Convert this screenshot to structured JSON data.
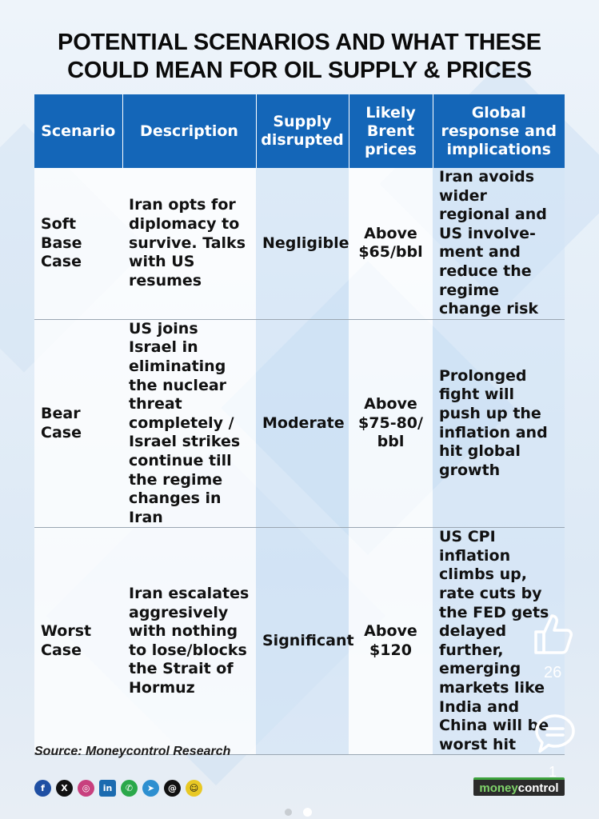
{
  "title": {
    "line1": "POTENTIAL SCENARIOS AND WHAT THESE",
    "line2": "COULD MEAN FOR OIL SUPPLY & PRICES"
  },
  "table": {
    "headers": [
      "Scenario",
      "Description",
      "Supply disrupted",
      "Likely Brent prices",
      "Global response and implications"
    ],
    "rows": [
      {
        "scenario": "Soft Base Case",
        "description": "Iran opts for diplomacy to survive. Talks with US resumes",
        "supply": "Negligible",
        "price": "Above $65/bbl",
        "response": "Iran avoids wider regional and US involve-ment and reduce the regime change risk"
      },
      {
        "scenario": "Bear Case",
        "description": "US joins Israel in eliminating the nuclear threat completely / Israel strikes continue till the regime changes in Iran",
        "supply": "Moderate",
        "price": "Above $75-80/ bbl",
        "response": "Prolonged fight will push up the inflation and hit global growth"
      },
      {
        "scenario": "Worst Case",
        "description": "Iran escalates aggresively with nothing to lose/blocks the Strait of Hormuz",
        "supply": "Significant",
        "price": "Above $120",
        "response": "US CPI inflation climbs up, rate cuts by the FED gets delayed further, emerging markets like India and China will be worst hit"
      }
    ]
  },
  "source": "Source: Moneycontrol Research",
  "logo": {
    "part1": "money",
    "part2": "control"
  },
  "overlay": {
    "like_count": "26",
    "comment_count": "1"
  },
  "social_icons": [
    "facebook-icon",
    "x-icon",
    "instagram-icon",
    "linkedin-icon",
    "whatsapp-icon",
    "telegram-icon",
    "threads-icon",
    "snapchat-icon"
  ],
  "colors": {
    "header_bg": "#1466b8",
    "header_text": "#ffffff"
  }
}
